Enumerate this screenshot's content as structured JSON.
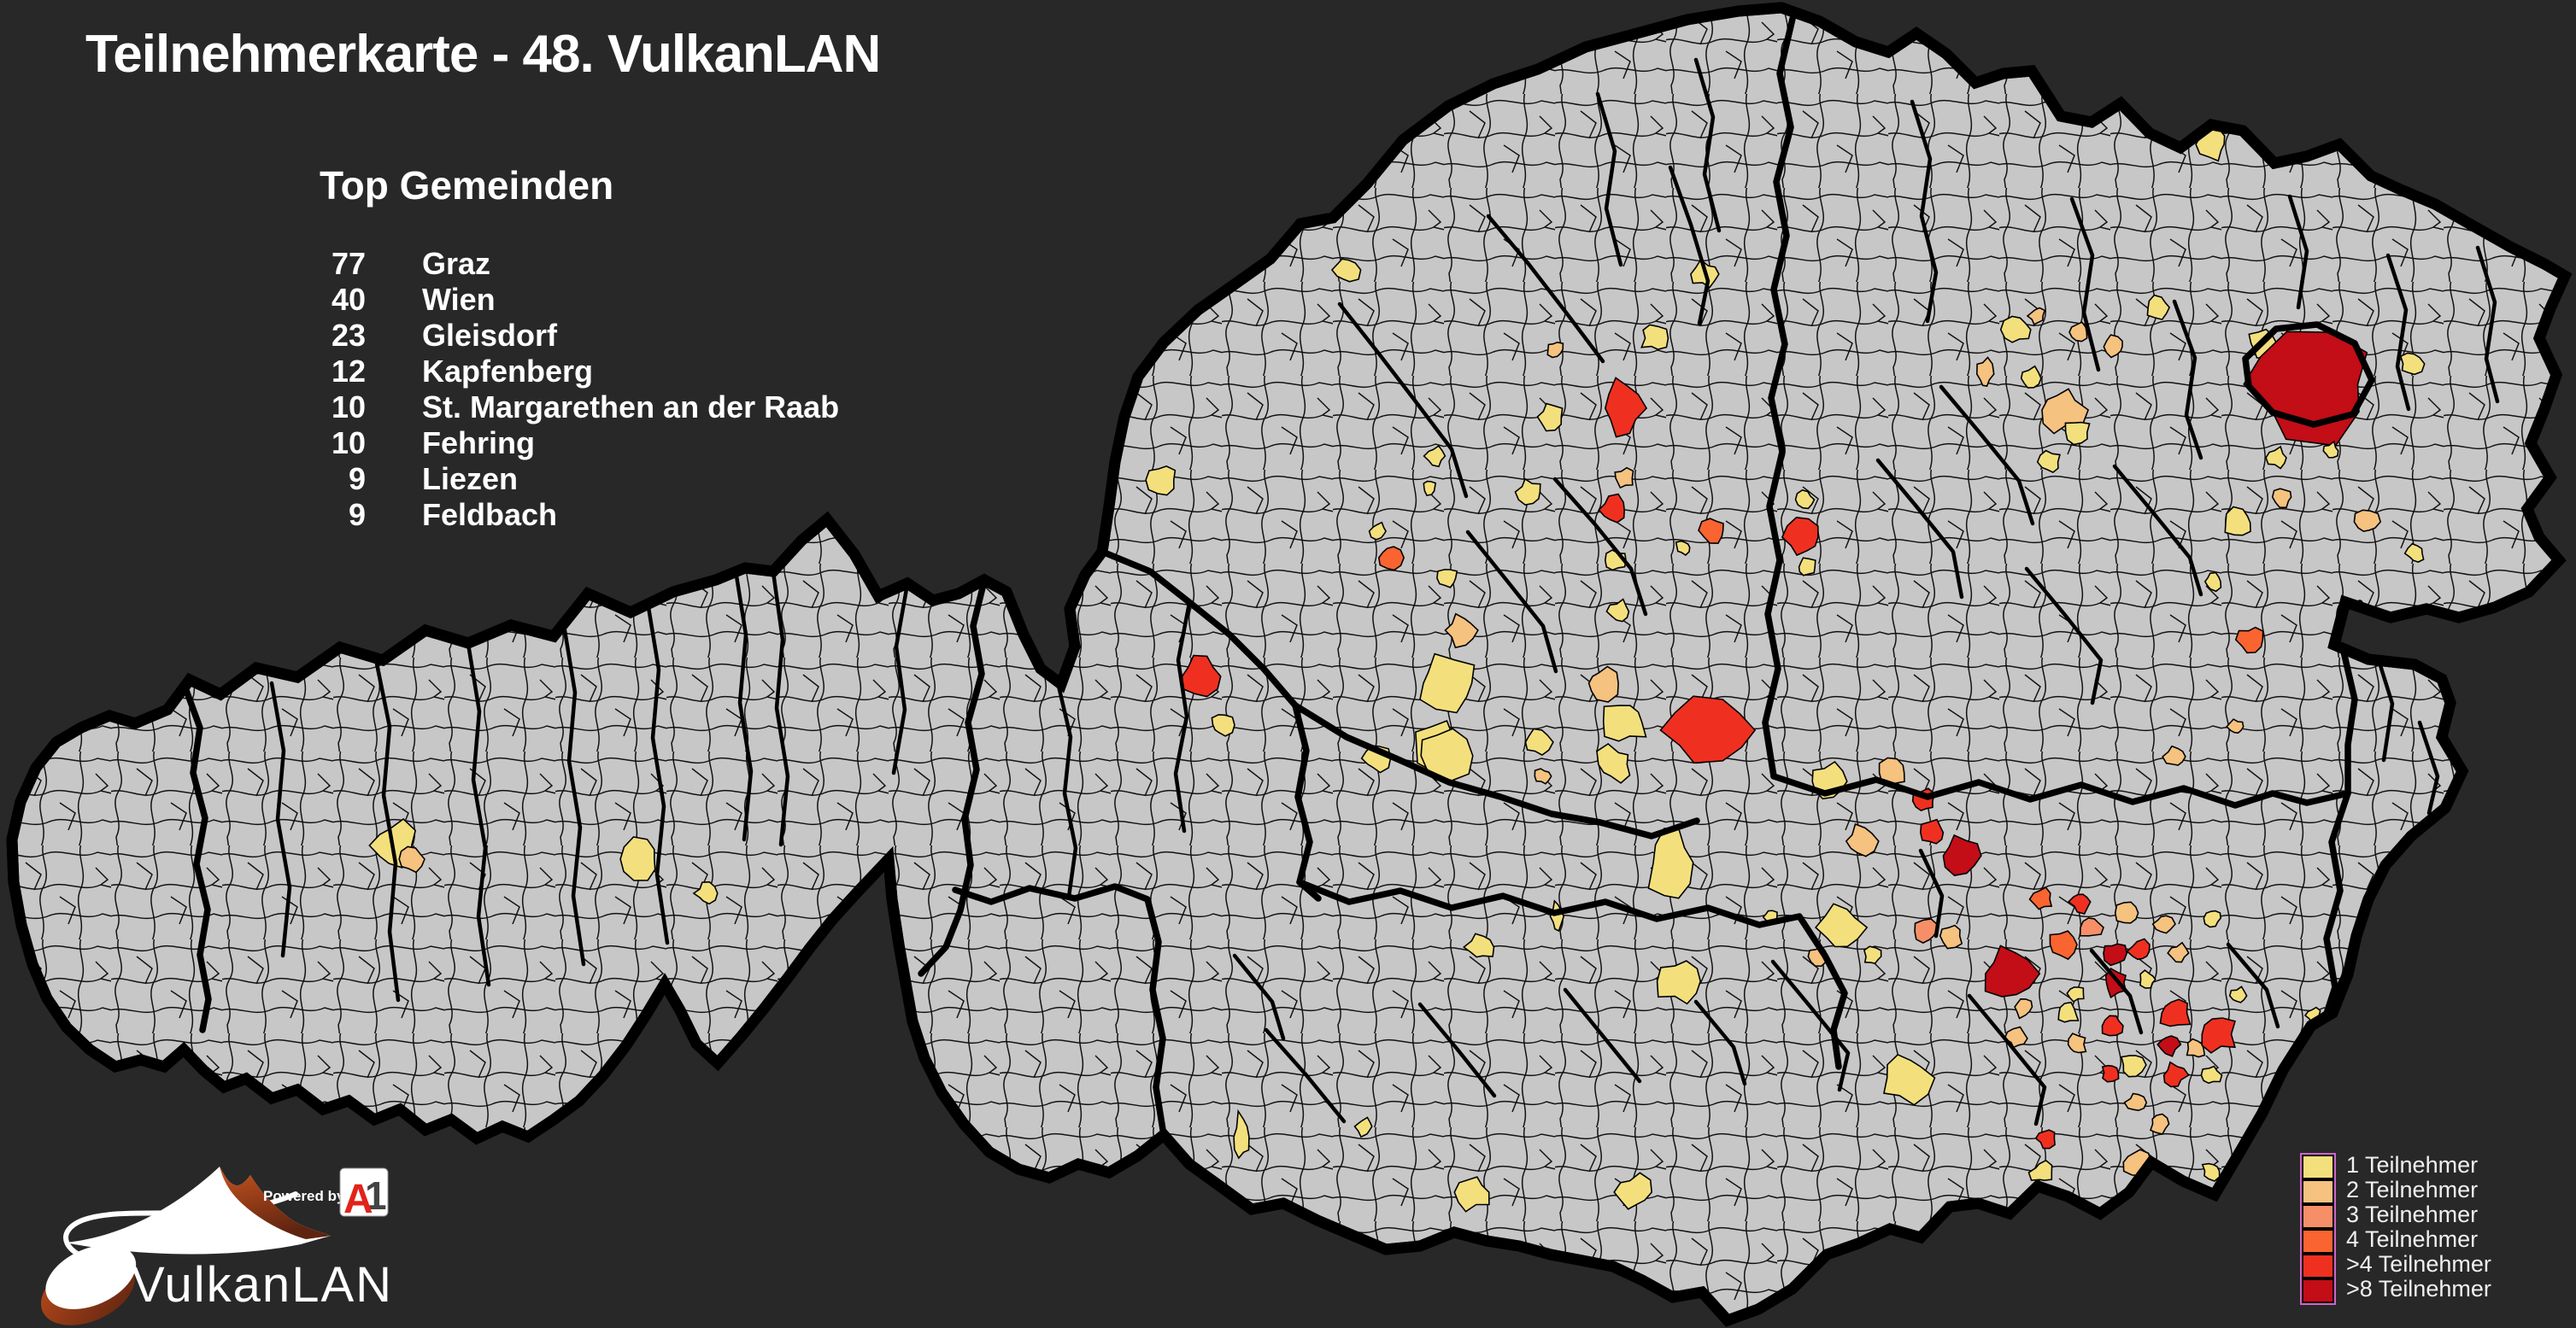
{
  "title": "Teilnehmerkarte - 48. VulkanLAN",
  "top_gemeinden": {
    "heading": "Top Gemeinden",
    "rows": [
      {
        "count": "77",
        "name": "Graz"
      },
      {
        "count": "40",
        "name": "Wien"
      },
      {
        "count": "23",
        "name": "Gleisdorf"
      },
      {
        "count": "12",
        "name": "Kapfenberg"
      },
      {
        "count": "10",
        "name": "St. Margarethen an der Raab"
      },
      {
        "count": "10",
        "name": "Fehring"
      },
      {
        "count": "9",
        "name": "Liezen"
      },
      {
        "count": "9",
        "name": "Feldbach"
      }
    ]
  },
  "legend": {
    "items": [
      {
        "label": "1 Teilnehmer",
        "color": "#f3e07d"
      },
      {
        "label": "2 Teilnehmer",
        "color": "#f5c27f"
      },
      {
        "label": "3 Teilnehmer",
        "color": "#f68f68"
      },
      {
        "label": "4 Teilnehmer",
        "color": "#fa6430"
      },
      {
        "label": ">4 Teilnehmer",
        "color": "#ef3020"
      },
      {
        "label": ">8 Teilnehmer",
        "color": "#c30d17"
      }
    ],
    "frame_color": "#cc66cc"
  },
  "logo": {
    "brand": "VulkanLAN",
    "powered_by": "Powered by",
    "sponsor": "A1"
  },
  "map": {
    "background": "#282828",
    "land_color": "#c7c7c7",
    "border_color": "#000000",
    "cells": [
      [
        462,
        990,
        26,
        1
      ],
      [
        482,
        1006,
        13,
        2
      ],
      [
        750,
        1006,
        22,
        1
      ],
      [
        826,
        1046,
        11,
        1
      ],
      [
        1575,
        316,
        15,
        1
      ],
      [
        1360,
        562,
        17,
        1
      ],
      [
        1680,
        534,
        11,
        1
      ],
      [
        1614,
        622,
        9,
        1
      ],
      [
        1627,
        653,
        13,
        4
      ],
      [
        1694,
        677,
        11,
        1
      ],
      [
        1710,
        738,
        17,
        2
      ],
      [
        1692,
        800,
        30,
        1,
        1.15,
        1
      ],
      [
        1683,
        876,
        26,
        1
      ],
      [
        1405,
        792,
        21,
        5
      ],
      [
        1430,
        849,
        13,
        1
      ],
      [
        1610,
        888,
        15,
        1
      ],
      [
        1690,
        885,
        28,
        1
      ],
      [
        1800,
        869,
        15,
        1
      ],
      [
        1806,
        909,
        9,
        2
      ],
      [
        1875,
        800,
        18,
        2
      ],
      [
        1902,
        845,
        24,
        1
      ],
      [
        1890,
        895,
        20,
        1
      ],
      [
        1900,
        560,
        11,
        2
      ],
      [
        1996,
        321,
        14,
        1
      ],
      [
        1936,
        396,
        14,
        1
      ],
      [
        1820,
        409,
        9,
        2
      ],
      [
        1900,
        478,
        24,
        5,
        1,
        1.3
      ],
      [
        1815,
        488,
        14,
        1
      ],
      [
        1888,
        597,
        15,
        5
      ],
      [
        1790,
        576,
        13,
        1
      ],
      [
        1673,
        571,
        8,
        1
      ],
      [
        2006,
        621,
        15,
        4
      ],
      [
        2110,
        629,
        19,
        5
      ],
      [
        2114,
        664,
        11,
        1
      ],
      [
        1970,
        641,
        8,
        1
      ],
      [
        1891,
        656,
        11,
        1
      ],
      [
        1895,
        716,
        13,
        1
      ],
      [
        2113,
        585,
        10,
        1
      ],
      [
        2590,
        169,
        16,
        1
      ],
      [
        2526,
        360,
        13,
        1
      ],
      [
        2360,
        386,
        15,
        1
      ],
      [
        2384,
        370,
        9,
        2
      ],
      [
        2433,
        389,
        10,
        2
      ],
      [
        2475,
        406,
        12,
        2
      ],
      [
        2323,
        438,
        9,
        2,
        1,
        1.8
      ],
      [
        2377,
        443,
        12,
        1
      ],
      [
        2413,
        480,
        24,
        2
      ],
      [
        2432,
        506,
        15,
        1
      ],
      [
        2399,
        541,
        13,
        1
      ],
      [
        2647,
        402,
        15,
        1
      ],
      [
        2703,
        450,
        62,
        6,
        1.25,
        0.95
      ],
      [
        2822,
        426,
        13,
        1
      ],
      [
        2728,
        528,
        9,
        1
      ],
      [
        2665,
        536,
        11,
        1
      ],
      [
        2672,
        582,
        10,
        2
      ],
      [
        2620,
        612,
        16,
        1
      ],
      [
        2590,
        681,
        10,
        1
      ],
      [
        2635,
        749,
        14,
        4
      ],
      [
        2617,
        851,
        9,
        2
      ],
      [
        2546,
        886,
        12,
        2
      ],
      [
        2770,
        611,
        13,
        2
      ],
      [
        2827,
        648,
        10,
        1
      ],
      [
        2752,
        721,
        9,
        1
      ],
      [
        2000,
        855,
        40,
        5,
        1.25,
        0.9
      ],
      [
        1956,
        1010,
        30,
        1,
        0.9,
        1.4
      ],
      [
        2140,
        915,
        20,
        1
      ],
      [
        2215,
        905,
        15,
        2
      ],
      [
        2252,
        938,
        13,
        5
      ],
      [
        2295,
        1002,
        20,
        6
      ],
      [
        2262,
        975,
        14,
        5
      ],
      [
        2155,
        1086,
        27,
        1
      ],
      [
        2178,
        985,
        17,
        2
      ],
      [
        2128,
        1120,
        10,
        2
      ],
      [
        2192,
        1120,
        10,
        1
      ],
      [
        2230,
        1262,
        30,
        1
      ],
      [
        2368,
        1179,
        11,
        2
      ],
      [
        2420,
        1186,
        13,
        1
      ],
      [
        2496,
        1247,
        13,
        1
      ],
      [
        2570,
        1228,
        10,
        2
      ],
      [
        2590,
        1075,
        9,
        1
      ],
      [
        2255,
        1091,
        13,
        3
      ],
      [
        2284,
        1096,
        13,
        2
      ],
      [
        2352,
        1140,
        28,
        6
      ],
      [
        2415,
        1106,
        15,
        4
      ],
      [
        2448,
        1086,
        13,
        3
      ],
      [
        2435,
        1056,
        12,
        5
      ],
      [
        2390,
        1053,
        12,
        4
      ],
      [
        2490,
        1069,
        12,
        2
      ],
      [
        2475,
        1116,
        12,
        6
      ],
      [
        2505,
        1114,
        12,
        5
      ],
      [
        2476,
        1151,
        14,
        6
      ],
      [
        2514,
        1147,
        9,
        1
      ],
      [
        2545,
        1186,
        18,
        5
      ],
      [
        2595,
        1211,
        20,
        5
      ],
      [
        2538,
        1223,
        12,
        6
      ],
      [
        2473,
        1201,
        12,
        5
      ],
      [
        2470,
        1256,
        10,
        5
      ],
      [
        2545,
        1259,
        13,
        5
      ],
      [
        2532,
        1082,
        11,
        2
      ],
      [
        2550,
        1116,
        10,
        2
      ],
      [
        2620,
        1166,
        9,
        1
      ],
      [
        2708,
        1189,
        8,
        1
      ],
      [
        2588,
        1259,
        10,
        1
      ],
      [
        2500,
        1291,
        11,
        2
      ],
      [
        2527,
        1316,
        10,
        2
      ],
      [
        2395,
        1333,
        10,
        5
      ],
      [
        2390,
        1373,
        12,
        1
      ],
      [
        2500,
        1361,
        14,
        2
      ],
      [
        2588,
        1371,
        10,
        1
      ],
      [
        2430,
        1163,
        9,
        1
      ],
      [
        2360,
        1216,
        11,
        2
      ],
      [
        2430,
        1223,
        11,
        2
      ],
      [
        1732,
        1109,
        15,
        1
      ],
      [
        1822,
        1073,
        10,
        1,
        0.7,
        1.6
      ],
      [
        1966,
        1149,
        24,
        1
      ],
      [
        2072,
        1074,
        8,
        1
      ],
      [
        1453,
        1331,
        13,
        1,
        0.75,
        1.9
      ],
      [
        1597,
        1319,
        10,
        1
      ],
      [
        1723,
        1396,
        19,
        1
      ],
      [
        1912,
        1396,
        19,
        1
      ]
    ]
  }
}
